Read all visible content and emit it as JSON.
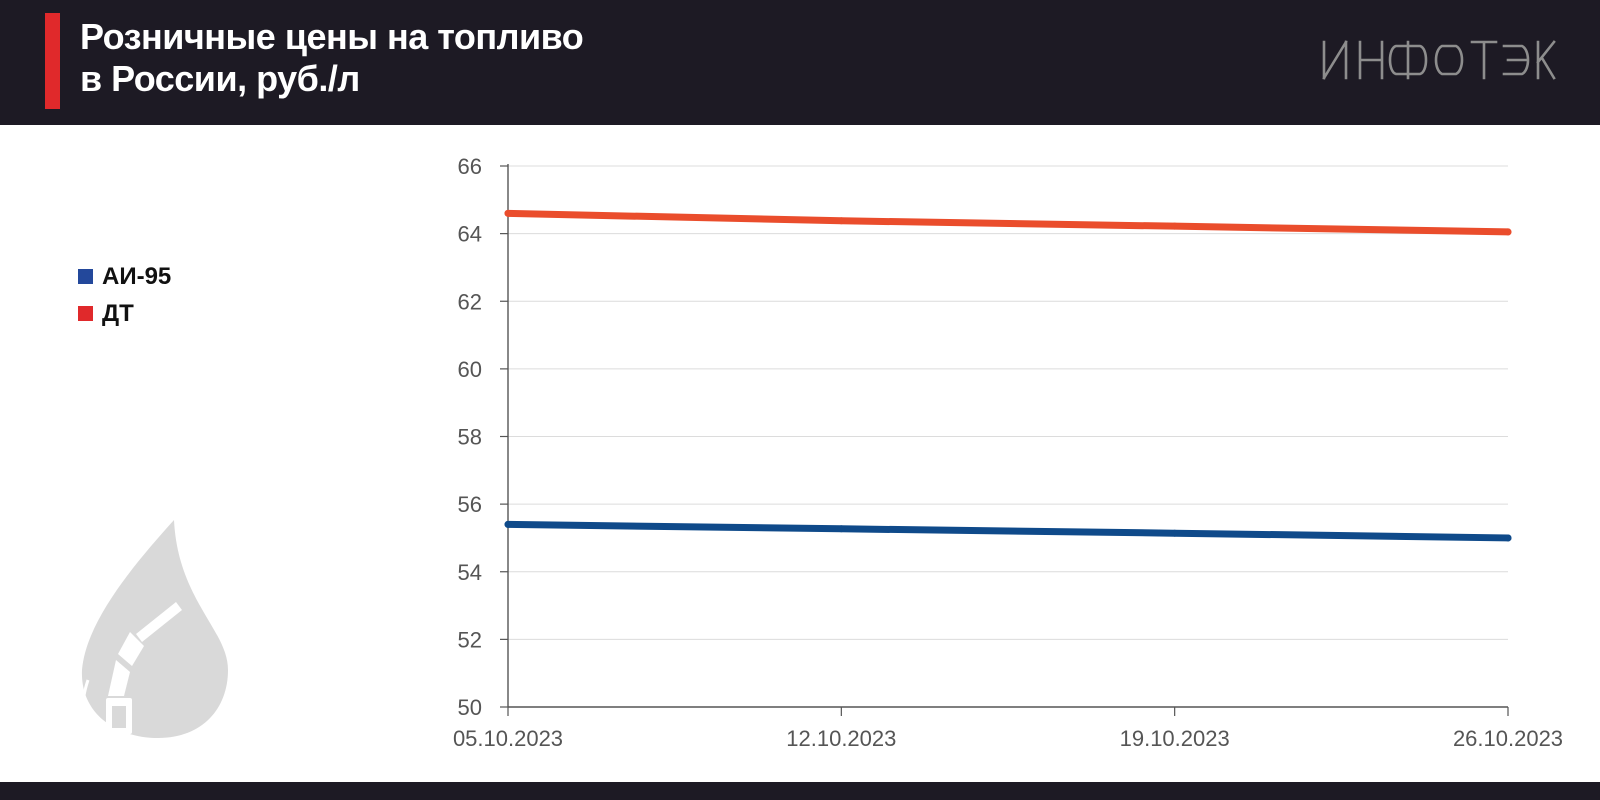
{
  "header": {
    "title_line1": "Розничные цены на топливо",
    "title_line2": "в России, руб./л",
    "logo_text": "ИНФОТЭК",
    "background": "#1d1a24",
    "accent": "#e0292b"
  },
  "legend": {
    "items": [
      {
        "label": "АИ-95",
        "color": "#23489b"
      },
      {
        "label": "ДТ",
        "color": "#e0292b"
      }
    ]
  },
  "decor": {
    "icon": "fuel-drop-icon"
  },
  "chart_data": {
    "type": "line",
    "title": "Розничные цены на топливо в России, руб./л",
    "xlabel": "",
    "ylabel": "",
    "categories": [
      "05.10.2023",
      "12.10.2023",
      "19.10.2023",
      "26.10.2023"
    ],
    "series": [
      {
        "name": "АИ-95",
        "color": "#0f4a8a",
        "values": [
          55.4,
          55.27,
          55.14,
          55.0
        ]
      },
      {
        "name": "ДТ",
        "color": "#ea4d2c",
        "values": [
          64.6,
          64.38,
          64.22,
          64.05
        ]
      }
    ],
    "ylim": [
      50,
      66
    ],
    "yticks": [
      50,
      52,
      54,
      56,
      58,
      60,
      62,
      64,
      66
    ],
    "grid": true,
    "legend_position": "left"
  }
}
